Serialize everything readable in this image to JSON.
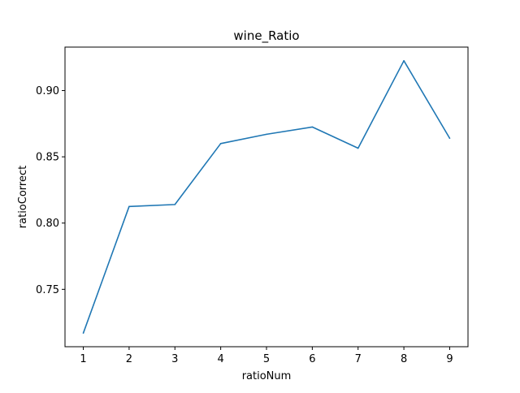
{
  "chart_data": {
    "type": "line",
    "title": "wine_Ratio",
    "xlabel": "ratioNum",
    "ylabel": "ratioCorrect",
    "x": [
      1,
      2,
      3,
      4,
      5,
      6,
      7,
      8,
      9
    ],
    "series": [
      {
        "values": [
          0.717,
          0.8125,
          0.814,
          0.86,
          0.867,
          0.8725,
          0.8565,
          0.9225,
          0.864
        ],
        "color": "#1f77b4"
      }
    ],
    "xlim": [
      0.6,
      9.4
    ],
    "ylim": [
      0.7067,
      0.9328
    ],
    "xticks": [
      1,
      2,
      3,
      4,
      5,
      6,
      7,
      8,
      9
    ],
    "xtick_labels": [
      "1",
      "2",
      "3",
      "4",
      "5",
      "6",
      "7",
      "8",
      "9"
    ],
    "yticks": [
      0.75,
      0.8,
      0.85,
      0.9
    ],
    "ytick_labels": [
      "0.75",
      "0.80",
      "0.85",
      "0.90"
    ],
    "grid": false,
    "legend": "none"
  }
}
